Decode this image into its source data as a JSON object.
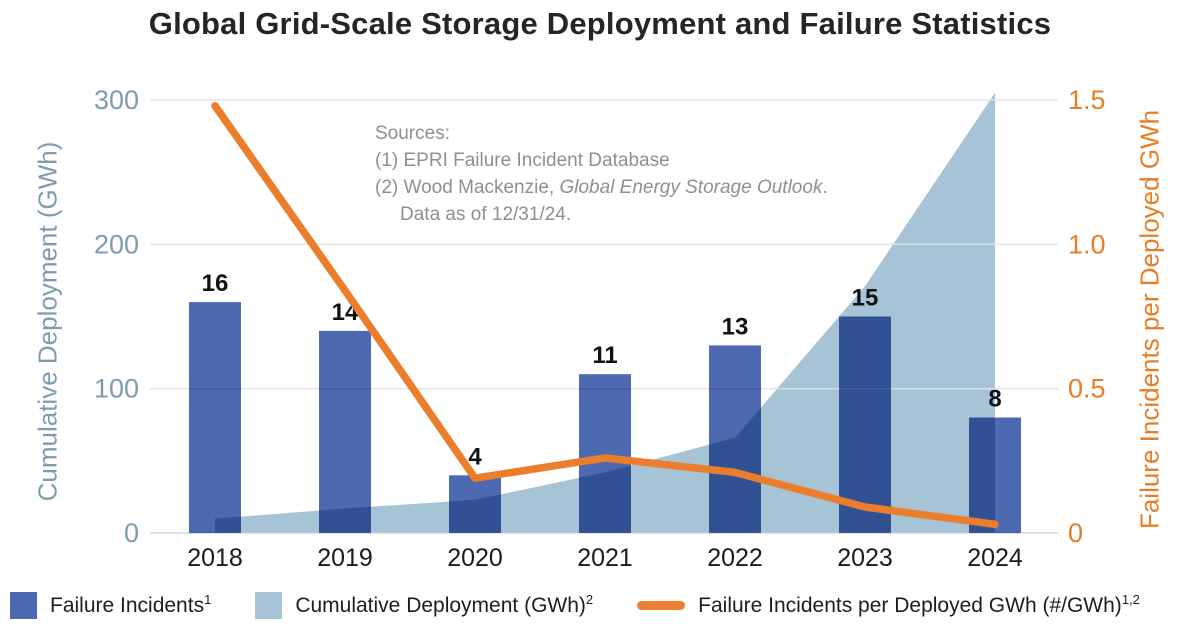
{
  "title": "Global Grid-Scale Storage Deployment and Failure Statistics",
  "sources": {
    "line1": "Sources:",
    "line2": "(1) EPRI Failure Incident Database",
    "line3_prefix": "(2) Wood Mackenzie, ",
    "line3_italic": "Global Energy Storage Outlook",
    "line3_suffix": ".",
    "line4": "Data as of 12/31/24."
  },
  "legend": [
    {
      "label": "Failure Incidents",
      "sup": "1",
      "swatch": "#4C69B1",
      "kind": "square"
    },
    {
      "label": "Cumulative Deployment (GWh)",
      "sup": "2",
      "swatch": "#A6C4D6",
      "kind": "square"
    },
    {
      "label": "Failure Incidents per Deployed GWh (#/GWh)",
      "sup": "1,2",
      "swatch": "#EC8032",
      "kind": "line"
    }
  ],
  "chart_data": {
    "type": "combo",
    "categories": [
      "2018",
      "2019",
      "2020",
      "2021",
      "2022",
      "2023",
      "2024"
    ],
    "series": [
      {
        "name": "Failure Incidents",
        "type": "bar",
        "axis": "hidden",
        "values": [
          16,
          14,
          4,
          11,
          13,
          15,
          8
        ],
        "labels": [
          "16",
          "14",
          "4",
          "11",
          "13",
          "15",
          "8"
        ],
        "color": "#4C69B1"
      },
      {
        "name": "Cumulative Deployment (GWh)",
        "type": "area",
        "axis": "left",
        "values": [
          10,
          17,
          23,
          42,
          66,
          171,
          305
        ],
        "color": "#A6C4D6"
      },
      {
        "name": "Failure Incidents per Deployed GWh (#/GWh)",
        "type": "line",
        "axis": "right",
        "values": [
          1.48,
          0.84,
          0.19,
          0.26,
          0.21,
          0.09,
          0.03
        ],
        "color": "#EA7E2C"
      }
    ],
    "left_axis": {
      "label": "Cumulative Deployment (GWh)",
      "range": [
        0,
        300
      ],
      "ticks": [
        0,
        100,
        200,
        300
      ],
      "tick_labels": [
        "0",
        "100",
        "200",
        "300"
      ],
      "color": "#7E9DAC"
    },
    "right_axis": {
      "label": "Failure Incidents per Deployed GWh",
      "range": [
        0,
        1.5
      ],
      "ticks": [
        0,
        0.5,
        1.0,
        1.5
      ],
      "tick_labels": [
        "0",
        "0.5",
        "1.0",
        "1.5"
      ],
      "color": "#E87D26"
    },
    "bar_scale_note": "bars plotted on hidden 0-30 axis (value x10 on left GWh axis)",
    "grid": true,
    "legend_position": "bottom"
  }
}
